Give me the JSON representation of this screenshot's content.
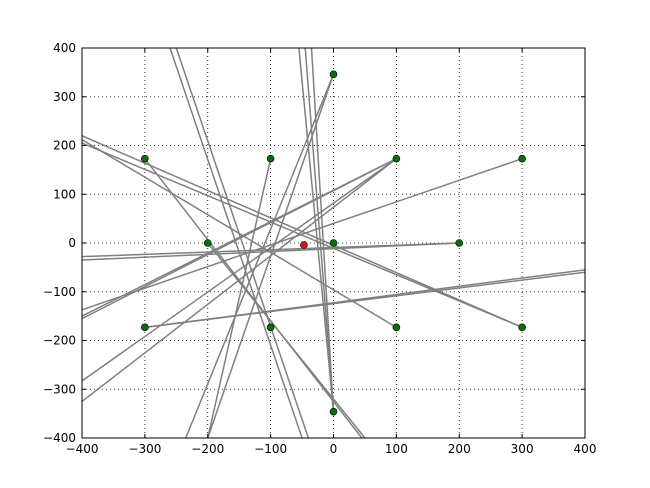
{
  "chart_data": {
    "type": "scatter",
    "xlim": [
      -400,
      400
    ],
    "ylim": [
      -400,
      400
    ],
    "xticks": [
      {
        "value": -400,
        "label": "−400"
      },
      {
        "value": -300,
        "label": "−300"
      },
      {
        "value": -200,
        "label": "−200"
      },
      {
        "value": -100,
        "label": "−100"
      },
      0,
      100,
      200,
      300,
      400
    ],
    "yticks": [
      {
        "value": -400,
        "label": "−400"
      },
      {
        "value": -300,
        "label": "−300"
      },
      {
        "value": -200,
        "label": "−200"
      },
      {
        "value": -100,
        "label": "−100"
      },
      0,
      100,
      200,
      300,
      400
    ],
    "grid": true,
    "line_color": "#808080",
    "lines": [
      {
        "x": [
          -400,
          300
        ],
        "y": [
          220,
          -173
        ]
      },
      {
        "x": [
          -400,
          100
        ],
        "y": [
          212,
          -173
        ]
      },
      {
        "x": [
          -400,
          300
        ],
        "y": [
          205,
          -173
        ]
      },
      {
        "x": [
          -400,
          200
        ],
        "y": [
          -35,
          0
        ]
      },
      {
        "x": [
          -400,
          200
        ],
        "y": [
          -28,
          0
        ]
      },
      {
        "x": [
          -400,
          300
        ],
        "y": [
          -137,
          173
        ]
      },
      {
        "x": [
          -400,
          100
        ],
        "y": [
          -155,
          173
        ]
      },
      {
        "x": [
          -400,
          100
        ],
        "y": [
          -150,
          173
        ]
      },
      {
        "x": [
          -400,
          100
        ],
        "y": [
          -283,
          173
        ]
      },
      {
        "x": [
          -400,
          100
        ],
        "y": [
          -325,
          173
        ]
      },
      {
        "x": [
          -300,
          400
        ],
        "y": [
          -173,
          -55
        ]
      },
      {
        "x": [
          -300,
          400
        ],
        "y": [
          -173,
          -60
        ]
      },
      {
        "x": [
          -260,
          -50
        ],
        "y": [
          400,
          -400
        ]
      },
      {
        "x": [
          -250,
          -40
        ],
        "y": [
          400,
          -400
        ]
      },
      {
        "x": [
          -300,
          45
        ],
        "y": [
          173,
          -400
        ]
      },
      {
        "x": [
          -200,
          50
        ],
        "y": [
          0,
          -400
        ]
      },
      {
        "x": [
          0,
          -235
        ],
        "y": [
          346,
          -400
        ]
      },
      {
        "x": [
          0,
          -200
        ],
        "y": [
          346,
          -400
        ]
      },
      {
        "x": [
          -100,
          -200
        ],
        "y": [
          173,
          -400
        ]
      },
      {
        "x": [
          -55,
          0
        ],
        "y": [
          400,
          -346
        ]
      },
      {
        "x": [
          -45,
          0
        ],
        "y": [
          400,
          -346
        ]
      },
      {
        "x": [
          -35,
          0
        ],
        "y": [
          400,
          -346
        ]
      }
    ],
    "series": [
      {
        "color": "#0b6e0b",
        "x": [
          -300,
          -100,
          100,
          300,
          0,
          -200,
          0,
          200,
          -300,
          -100,
          100,
          300,
          0
        ],
        "y": [
          173,
          173,
          173,
          173,
          346,
          0,
          0,
          0,
          -173,
          -173,
          -173,
          -173,
          -346
        ]
      },
      {
        "color": "#dd1111",
        "x": [
          -47
        ],
        "y": [
          -4
        ]
      }
    ]
  }
}
